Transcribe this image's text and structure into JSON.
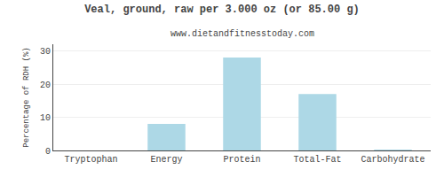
{
  "chart_data": {
    "type": "bar",
    "title": "Veal, ground, raw per 3.000 oz (or 85.00 g)",
    "subtitle": "www.dietandfitnesstoday.com",
    "categories": [
      "Tryptophan",
      "Energy",
      "Protein",
      "Total-Fat",
      "Carbohydrate"
    ],
    "values": [
      0.0,
      8.0,
      28.0,
      17.0,
      0.2
    ],
    "color": "#add8e6",
    "ylabel": "Percentage of RDH (%)",
    "ylim": [
      0,
      32
    ],
    "yticks": [
      0,
      10,
      20,
      30
    ],
    "grid": true
  }
}
